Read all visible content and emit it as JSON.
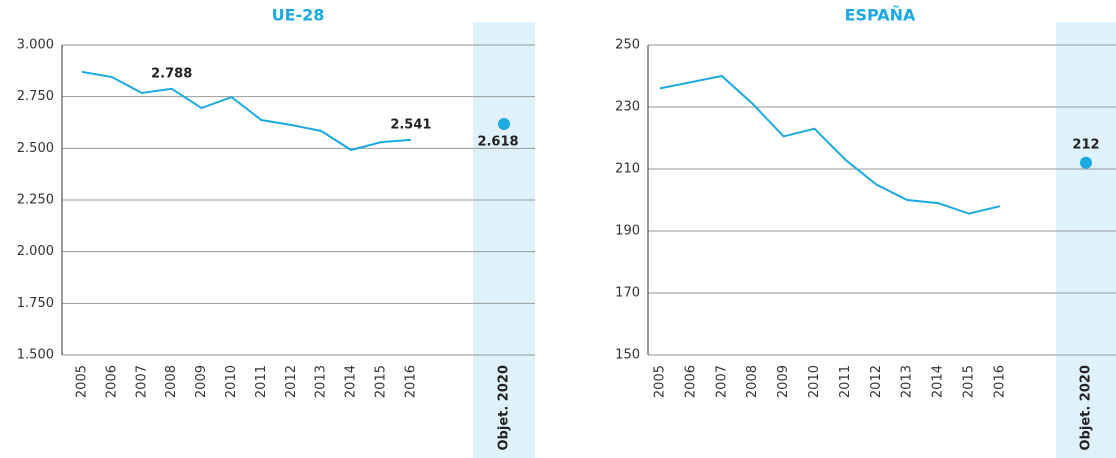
{
  "chart_data": [
    {
      "type": "line",
      "title": "UE-28",
      "categories": [
        "2005",
        "2006",
        "2007",
        "2008",
        "2009",
        "2010",
        "2011",
        "2012",
        "2013",
        "2014",
        "2015",
        "2016"
      ],
      "values": [
        2870,
        2845,
        2768,
        2788,
        2695,
        2748,
        2637,
        2613,
        2584,
        2492,
        2530,
        2541
      ],
      "value_labels": [
        null,
        null,
        null,
        "2.788",
        null,
        null,
        null,
        null,
        null,
        null,
        null,
        "2.541"
      ],
      "target": {
        "label": "Objet. 2020",
        "value": 2618,
        "value_label": "2.618"
      },
      "color": "#1ba9e1",
      "band_color": "#dff1fa",
      "grid": true,
      "ylim": [
        1500,
        3000
      ],
      "yticks": [
        {
          "value": 1500,
          "label": "1.500"
        },
        {
          "value": 1750,
          "label": "1.750"
        },
        {
          "value": 2000,
          "label": "2.000"
        },
        {
          "value": 2250,
          "label": "2.250"
        },
        {
          "value": 2500,
          "label": "2.500"
        },
        {
          "value": 2750,
          "label": "2.750"
        },
        {
          "value": 3000,
          "label": "3.000"
        }
      ]
    },
    {
      "type": "line",
      "title": "ESPAÑA",
      "categories": [
        "2005",
        "2006",
        "2007",
        "2008",
        "2009",
        "2010",
        "2011",
        "2012",
        "2013",
        "2014",
        "2015",
        "2016"
      ],
      "values": [
        236,
        238,
        240,
        231,
        220.5,
        223,
        213,
        205,
        200,
        199,
        195.6,
        198
      ],
      "value_labels": [
        null,
        null,
        null,
        null,
        null,
        null,
        null,
        null,
        null,
        null,
        null,
        null
      ],
      "target": {
        "label": "Objet. 2020",
        "value": 212
      },
      "color": "#1ba9e1",
      "band_color": "#dff1fa",
      "grid": true,
      "ylim": [
        150,
        250
      ],
      "yticks": [
        150,
        170,
        190,
        210,
        230,
        250
      ]
    }
  ]
}
